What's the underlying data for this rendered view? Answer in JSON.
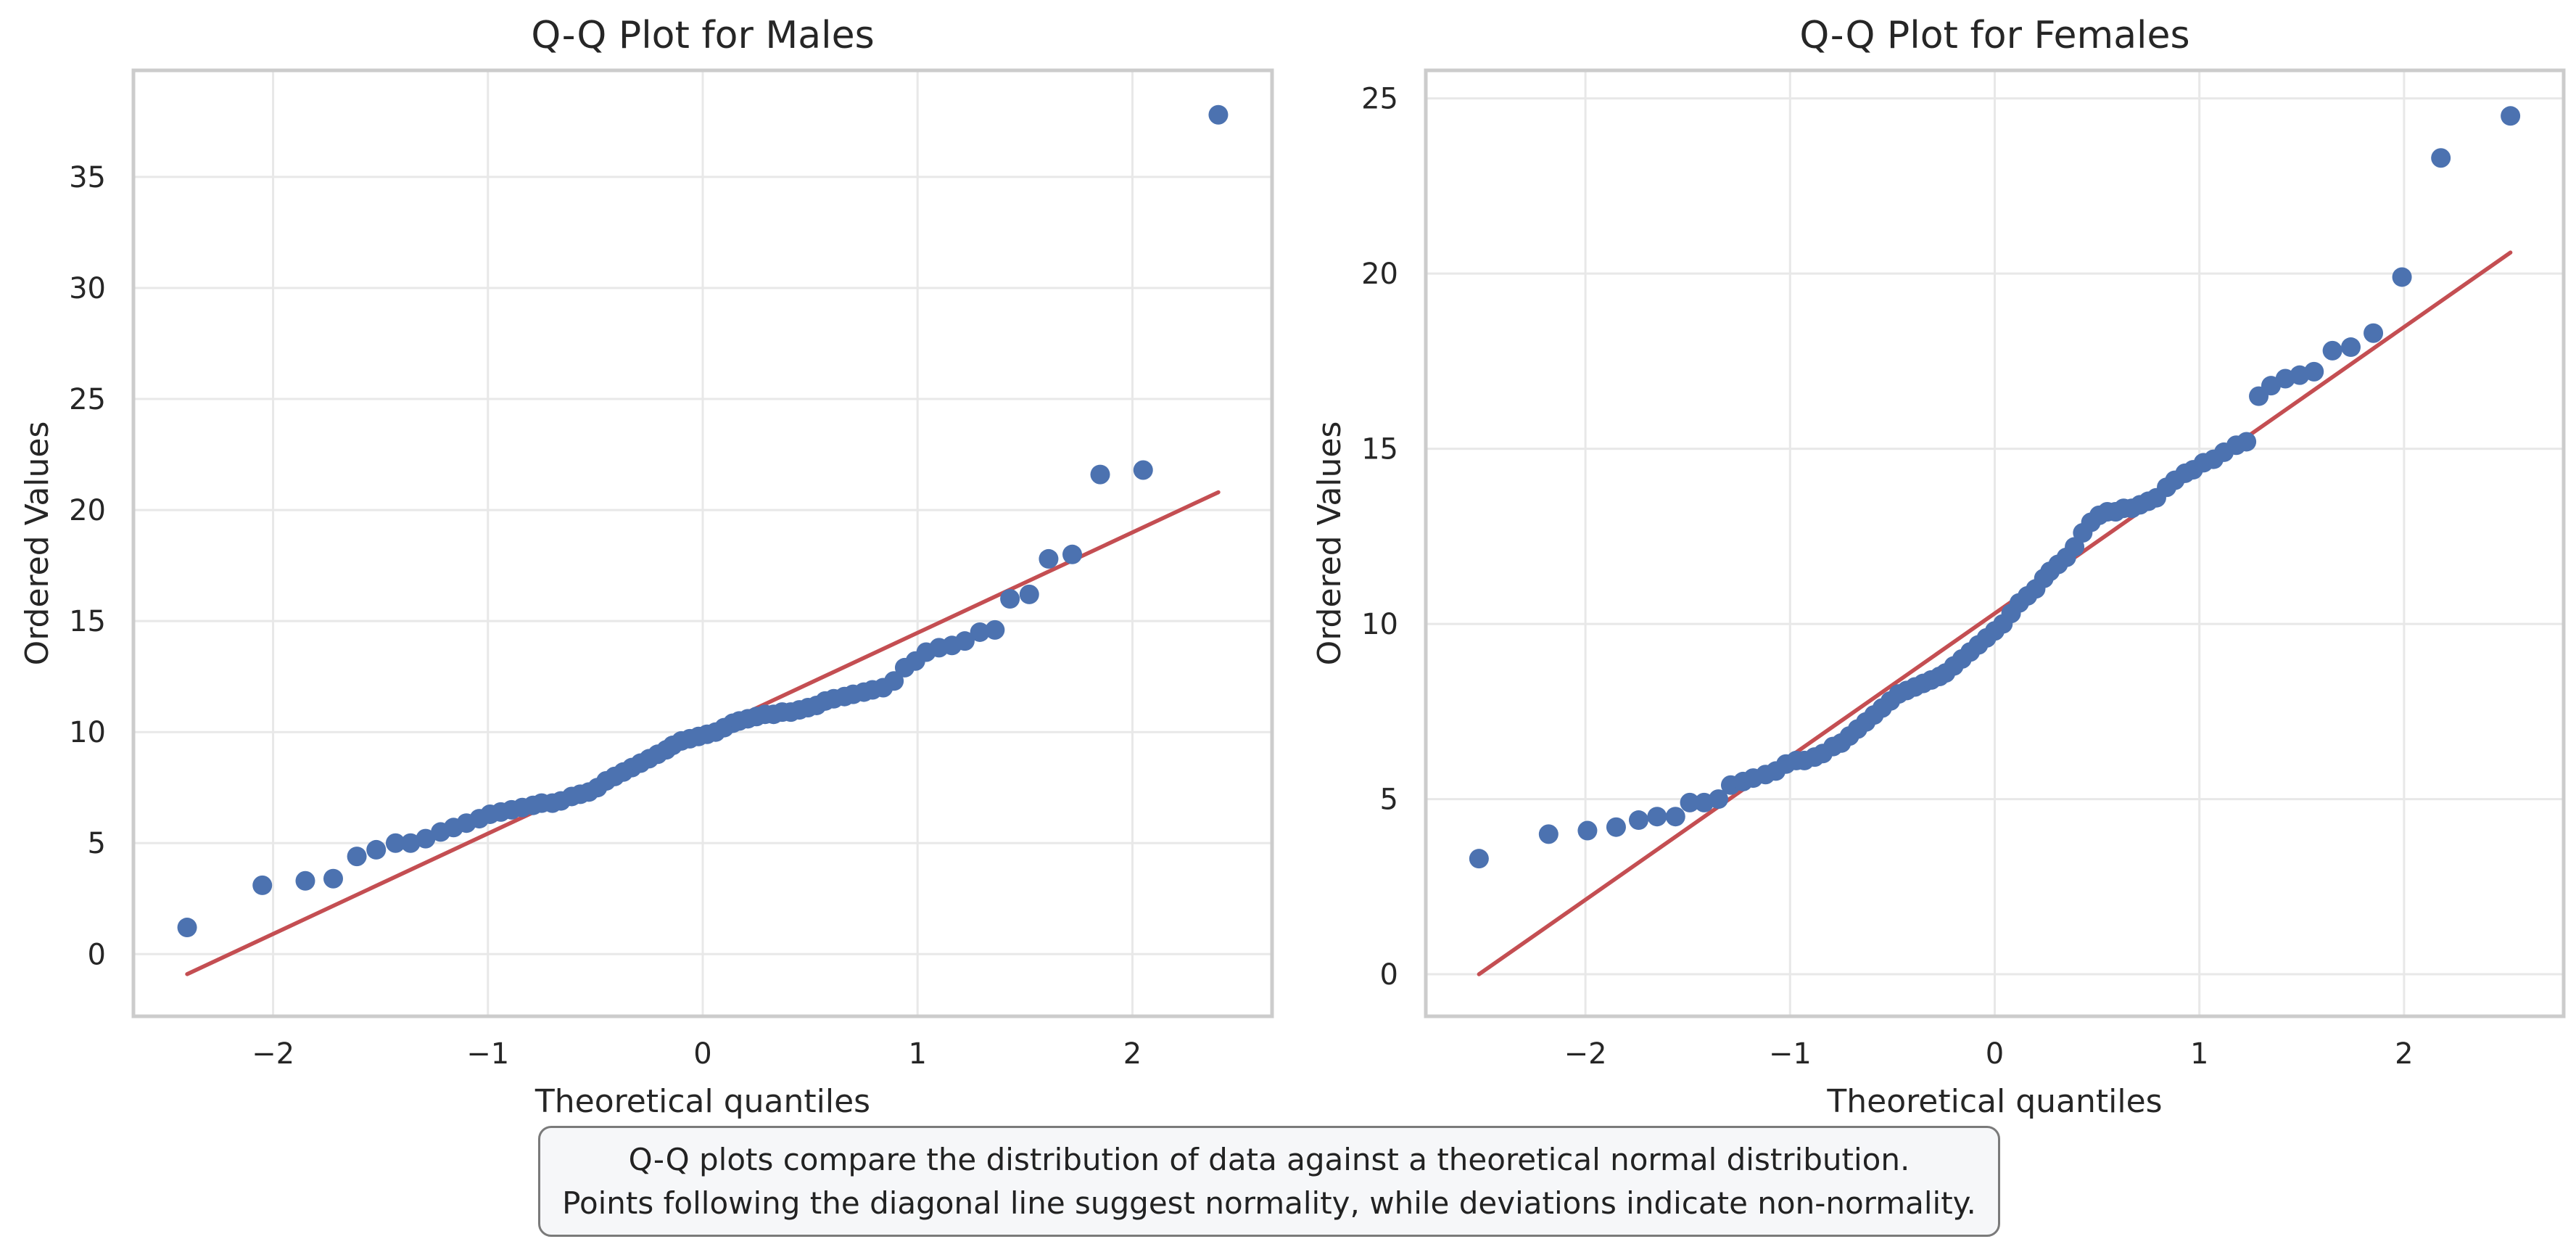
{
  "figure": {
    "caption_line1": "Q-Q plots compare the distribution of data against a theoretical normal distribution.",
    "caption_line2": "Points following the diagonal line suggest normality, while deviations indicate non-normality."
  },
  "colors": {
    "points": "#4c72b0",
    "fit_line": "#c44e52",
    "grid": "#e8e8e8",
    "spine": "#cccccc",
    "text": "#262626"
  },
  "chart_data": [
    {
      "type": "scatter",
      "title": "Q-Q Plot for Males",
      "xlabel": "Theoretical quantiles",
      "ylabel": "Ordered Values",
      "xlim": [
        -2.65,
        2.65
      ],
      "ylim": [
        -2.8,
        39.8
      ],
      "xticks": [
        -2,
        -1,
        0,
        1,
        2
      ],
      "xtick_labels": [
        "−2",
        "−1",
        "0",
        "1",
        "2"
      ],
      "yticks": [
        0,
        5,
        10,
        15,
        20,
        25,
        30,
        35
      ],
      "ytick_labels": [
        "0",
        "5",
        "10",
        "15",
        "20",
        "25",
        "30",
        "35"
      ],
      "fit_line": {
        "x": [
          -2.4,
          2.4
        ],
        "y": [
          -0.9,
          20.8
        ]
      },
      "points": {
        "x": [
          -2.4,
          -2.05,
          -1.85,
          -1.72,
          -1.61,
          -1.52,
          -1.43,
          -1.36,
          -1.29,
          -1.22,
          -1.16,
          -1.1,
          -1.04,
          -0.99,
          -0.94,
          -0.89,
          -0.84,
          -0.79,
          -0.75,
          -0.7,
          -0.66,
          -0.61,
          -0.57,
          -0.53,
          -0.49,
          -0.45,
          -0.41,
          -0.37,
          -0.33,
          -0.29,
          -0.25,
          -0.21,
          -0.17,
          -0.14,
          -0.1,
          -0.06,
          -0.02,
          0.02,
          0.06,
          0.1,
          0.14,
          0.17,
          0.21,
          0.25,
          0.29,
          0.33,
          0.37,
          0.41,
          0.45,
          0.49,
          0.53,
          0.57,
          0.61,
          0.66,
          0.7,
          0.75,
          0.79,
          0.84,
          0.89,
          0.94,
          0.99,
          1.04,
          1.1,
          1.16,
          1.22,
          1.29,
          1.36,
          1.43,
          1.52,
          1.61,
          1.72,
          1.85,
          2.05,
          2.4
        ],
        "y": [
          1.2,
          3.1,
          3.3,
          3.4,
          4.4,
          4.7,
          5.0,
          5.0,
          5.2,
          5.5,
          5.7,
          5.9,
          6.1,
          6.3,
          6.4,
          6.5,
          6.6,
          6.7,
          6.8,
          6.8,
          6.9,
          7.1,
          7.2,
          7.3,
          7.5,
          7.8,
          8.0,
          8.2,
          8.4,
          8.6,
          8.8,
          9.0,
          9.2,
          9.4,
          9.6,
          9.7,
          9.8,
          9.9,
          10.0,
          10.2,
          10.4,
          10.5,
          10.6,
          10.7,
          10.8,
          10.8,
          10.9,
          10.9,
          11.0,
          11.1,
          11.2,
          11.4,
          11.5,
          11.6,
          11.7,
          11.8,
          11.9,
          12.0,
          12.3,
          12.9,
          13.2,
          13.6,
          13.8,
          13.9,
          14.1,
          14.5,
          14.6,
          16.0,
          16.2,
          17.8,
          18.0,
          21.6,
          21.8,
          37.8
        ]
      }
    },
    {
      "type": "scatter",
      "title": "Q-Q Plot for Females",
      "xlabel": "Theoretical quantiles",
      "ylabel": "Ordered Values",
      "xlim": [
        -2.78,
        2.78
      ],
      "ylim": [
        -1.2,
        25.8
      ],
      "xticks": [
        -2,
        -1,
        0,
        1,
        2
      ],
      "xtick_labels": [
        "−2",
        "−1",
        "0",
        "1",
        "2"
      ],
      "yticks": [
        0,
        5,
        10,
        15,
        20,
        25
      ],
      "ytick_labels": [
        "0",
        "5",
        "10",
        "15",
        "20",
        "25"
      ],
      "fit_line": {
        "x": [
          -2.52,
          2.52
        ],
        "y": [
          0.0,
          20.6
        ]
      },
      "points": {
        "x": [
          -2.52,
          -2.18,
          -1.99,
          -1.85,
          -1.74,
          -1.65,
          -1.56,
          -1.49,
          -1.42,
          -1.35,
          -1.29,
          -1.23,
          -1.18,
          -1.12,
          -1.07,
          -1.02,
          -0.97,
          -0.93,
          -0.88,
          -0.84,
          -0.79,
          -0.75,
          -0.71,
          -0.67,
          -0.63,
          -0.59,
          -0.55,
          -0.51,
          -0.47,
          -0.43,
          -0.39,
          -0.35,
          -0.31,
          -0.27,
          -0.24,
          -0.2,
          -0.16,
          -0.12,
          -0.08,
          -0.04,
          0.0,
          0.04,
          0.08,
          0.12,
          0.16,
          0.2,
          0.24,
          0.27,
          0.31,
          0.35,
          0.39,
          0.43,
          0.47,
          0.51,
          0.55,
          0.59,
          0.63,
          0.67,
          0.71,
          0.75,
          0.79,
          0.84,
          0.88,
          0.93,
          0.97,
          1.02,
          1.07,
          1.12,
          1.18,
          1.23,
          1.29,
          1.35,
          1.42,
          1.49,
          1.56,
          1.65,
          1.74,
          1.85,
          1.99,
          2.18,
          2.52
        ],
        "y": [
          3.3,
          4.0,
          4.1,
          4.2,
          4.4,
          4.5,
          4.5,
          4.9,
          4.9,
          5.0,
          5.4,
          5.5,
          5.6,
          5.7,
          5.8,
          6.0,
          6.1,
          6.1,
          6.2,
          6.3,
          6.5,
          6.6,
          6.8,
          7.0,
          7.2,
          7.4,
          7.6,
          7.8,
          8.0,
          8.1,
          8.2,
          8.3,
          8.4,
          8.5,
          8.6,
          8.8,
          9.0,
          9.2,
          9.4,
          9.6,
          9.8,
          10.0,
          10.3,
          10.6,
          10.8,
          11.0,
          11.3,
          11.5,
          11.7,
          11.9,
          12.2,
          12.6,
          12.9,
          13.1,
          13.2,
          13.2,
          13.3,
          13.3,
          13.4,
          13.5,
          13.6,
          13.9,
          14.1,
          14.3,
          14.4,
          14.6,
          14.7,
          14.9,
          15.1,
          15.2,
          16.5,
          16.8,
          17.0,
          17.1,
          17.2,
          17.8,
          17.9,
          18.3,
          19.9,
          23.3,
          24.5
        ]
      }
    }
  ]
}
